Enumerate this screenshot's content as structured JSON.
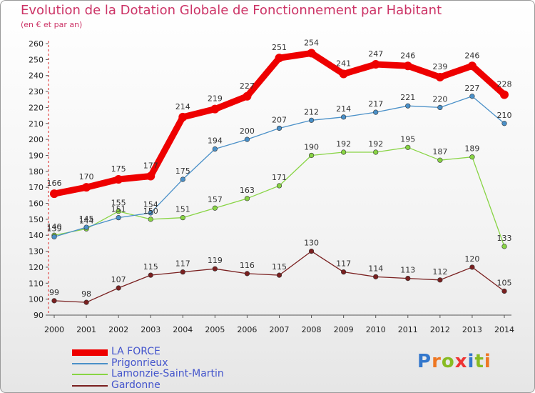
{
  "chart_data": {
    "type": "line",
    "title": "Evolution de la Dotation Globale de Fonctionnement par Habitant",
    "subtitle": "(en € et par an)",
    "xlabel": "",
    "ylabel": "",
    "x": [
      "2000",
      "2001",
      "2002",
      "2003",
      "2004",
      "2005",
      "2006",
      "2007",
      "2008",
      "2009",
      "2010",
      "2011",
      "2012",
      "2013",
      "2014"
    ],
    "ylim": [
      90,
      260
    ],
    "yticks": [
      90,
      100,
      110,
      120,
      130,
      140,
      150,
      160,
      170,
      180,
      190,
      200,
      210,
      220,
      230,
      240,
      250,
      260
    ],
    "grid": false,
    "legend_position": "bottom-left",
    "series": [
      {
        "name": "LA FORCE",
        "color": "#ee0000",
        "values": [
          166,
          170,
          175,
          177,
          214,
          219,
          227,
          251,
          254,
          241,
          247,
          246,
          239,
          246,
          228
        ],
        "labels": [
          "166",
          "170",
          "175",
          "177",
          "214",
          "219",
          "227",
          "251",
          "254",
          "241",
          "247",
          "246",
          "239",
          "246",
          "228"
        ]
      },
      {
        "name": "Prigonrieux",
        "color": "#4a90c8",
        "values": [
          139,
          145,
          151,
          154,
          175,
          194,
          200,
          207,
          212,
          214,
          217,
          221,
          220,
          227,
          210
        ],
        "labels": [
          "139",
          "145",
          "151",
          "154",
          "175",
          "194",
          "200",
          "207",
          "212",
          "214",
          "217",
          "221",
          "220",
          "227",
          "210"
        ]
      },
      {
        "name": "Lamonzie-Saint-Martin",
        "color": "#88d444",
        "values": [
          140,
          144,
          155,
          150,
          151,
          157,
          163,
          171,
          190,
          192,
          192,
          195,
          187,
          189,
          133
        ],
        "labels": [
          "140",
          "144",
          "155",
          "150",
          "151",
          "157",
          "163",
          "171",
          "190",
          "192",
          "192",
          "195",
          "187",
          "189",
          "133"
        ]
      },
      {
        "name": "Gardonne",
        "color": "#7a2020",
        "values": [
          99,
          98,
          107,
          115,
          117,
          119,
          116,
          115,
          130,
          117,
          114,
          113,
          112,
          120,
          105
        ],
        "labels": [
          "99",
          "98",
          "107",
          "115",
          "117",
          "119",
          "116",
          "115",
          "130",
          "117",
          "114",
          "113",
          "112",
          "120",
          "105"
        ]
      }
    ]
  },
  "branding": {
    "logo_letters": [
      "P",
      "r",
      "o",
      "x",
      "i",
      "t",
      "i"
    ],
    "logo_colors": [
      "#3377cc",
      "#ee7722",
      "#88bb22",
      "#ee3333",
      "#3377cc",
      "#88bb22",
      "#ee7722"
    ]
  }
}
